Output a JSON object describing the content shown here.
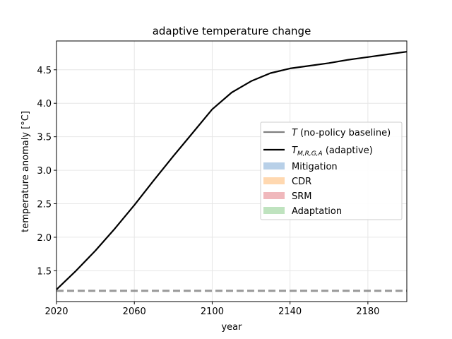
{
  "chart_data": {
    "type": "line",
    "title": "adaptive temperature change",
    "xlabel": "year",
    "ylabel": "temperature anomaly [°C]",
    "xlim": [
      2020,
      2200
    ],
    "ylim": [
      1.04,
      4.93
    ],
    "xticks": [
      2020,
      2060,
      2100,
      2140,
      2180
    ],
    "yticks": [
      1.5,
      2.0,
      2.5,
      3.0,
      3.5,
      4.0,
      4.5
    ],
    "grid": true,
    "legend_position": "center-right",
    "series": [
      {
        "name": "T (no-policy baseline)",
        "legend_symbol": "T",
        "legend_text": " (no-policy baseline)",
        "color": "#808080",
        "dashed": true,
        "x": [
          2020,
          2200
        ],
        "y": [
          1.2,
          1.2
        ]
      },
      {
        "name": "T_M,R,G,A (adaptive)",
        "legend_symbol": "T",
        "legend_subscript": "M,R,G,A",
        "legend_text": " (adaptive)",
        "color": "#000000",
        "dashed": false,
        "x": [
          2020,
          2030,
          2040,
          2050,
          2060,
          2070,
          2080,
          2090,
          2100,
          2110,
          2120,
          2130,
          2140,
          2150,
          2160,
          2170,
          2180,
          2190,
          2200
        ],
        "y": [
          1.22,
          1.5,
          1.8,
          2.13,
          2.48,
          2.85,
          3.21,
          3.56,
          3.91,
          4.16,
          4.33,
          4.45,
          4.52,
          4.56,
          4.6,
          4.65,
          4.69,
          4.73,
          4.77
        ]
      }
    ],
    "areas": [
      {
        "name": "Mitigation",
        "color": "#b8d0e8"
      },
      {
        "name": "CDR",
        "color": "#ffd8b0"
      },
      {
        "name": "SRM",
        "color": "#f0b8bc"
      },
      {
        "name": "Adaptation",
        "color": "#bfe3bf"
      }
    ]
  }
}
